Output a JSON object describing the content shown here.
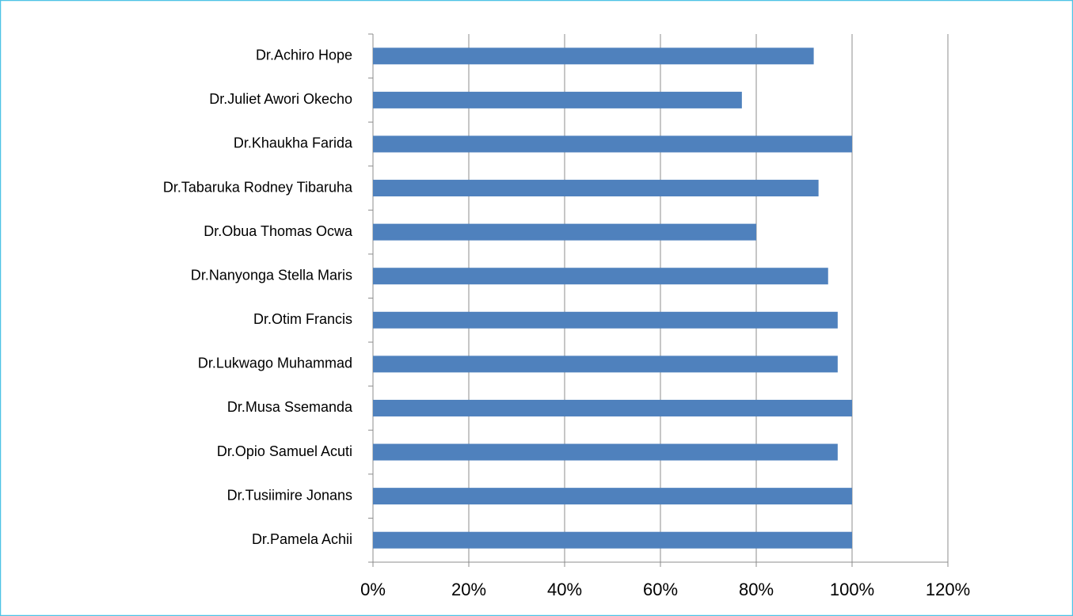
{
  "chart_data": {
    "type": "barh",
    "categories": [
      "Dr.Achiro Hope",
      "Dr.Juliet Awori Okecho",
      "Dr.Khaukha Farida",
      "Dr.Tabaruka Rodney Tibaruha",
      "Dr.Obua Thomas Ocwa",
      "Dr.Nanyonga Stella Maris",
      "Dr.Otim Francis",
      "Dr.Lukwago Muhammad",
      "Dr.Musa Ssemanda",
      "Dr.Opio Samuel Acuti",
      "Dr.Tusiimire Jonans",
      "Dr.Pamela Achii"
    ],
    "values": [
      92,
      77,
      100,
      93,
      80,
      95,
      97,
      97,
      100,
      97,
      100,
      100
    ],
    "color": "#4f81bd",
    "xlim": [
      0,
      120
    ],
    "xticks": [
      {
        "value": 0,
        "label": "0%"
      },
      {
        "value": 20,
        "label": "20%"
      },
      {
        "value": 40,
        "label": "40%"
      },
      {
        "value": 60,
        "label": "60%"
      },
      {
        "value": 80,
        "label": "80%"
      },
      {
        "value": 100,
        "label": "100%"
      },
      {
        "value": 120,
        "label": "120%"
      }
    ],
    "grid": true
  }
}
